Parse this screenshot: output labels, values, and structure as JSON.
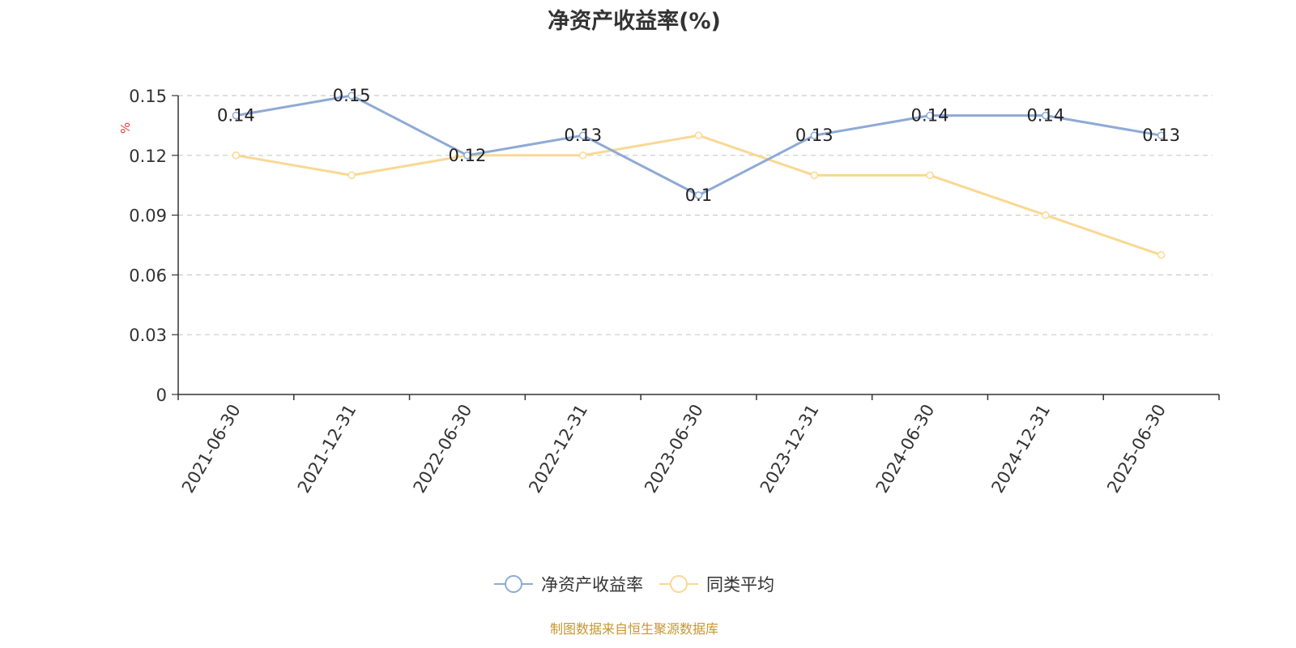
{
  "title": "净资产收益率(%)",
  "footer": "制图数据来自恒生聚源数据库",
  "chart_data": {
    "type": "line",
    "title": "净资产收益率(%)",
    "ylabel": "%",
    "ylim": [
      0,
      0.15
    ],
    "yticks": [
      "0",
      "0.03",
      "0.06",
      "0.09",
      "0.12",
      "0.15"
    ],
    "grid": true,
    "legend_position": "bottom",
    "categories": [
      "2021-06-30",
      "2021-12-31",
      "2022-06-30",
      "2022-12-31",
      "2023-06-30",
      "2023-12-31",
      "2024-06-30",
      "2024-12-31",
      "2025-06-30"
    ],
    "series": [
      {
        "name": "净资产收益率",
        "color": "#8eaad6",
        "values": [
          0.14,
          0.15,
          0.12,
          0.13,
          0.1,
          0.13,
          0.14,
          0.14,
          0.13
        ],
        "labels": [
          "0.14",
          "0.15",
          "0.12",
          "0.13",
          "0.1",
          "0.13",
          "0.14",
          "0.14",
          "0.13"
        ]
      },
      {
        "name": "同类平均",
        "color": "#f9d893",
        "values": [
          0.12,
          0.11,
          0.12,
          0.12,
          0.13,
          0.11,
          0.11,
          0.09,
          0.07
        ]
      }
    ]
  }
}
